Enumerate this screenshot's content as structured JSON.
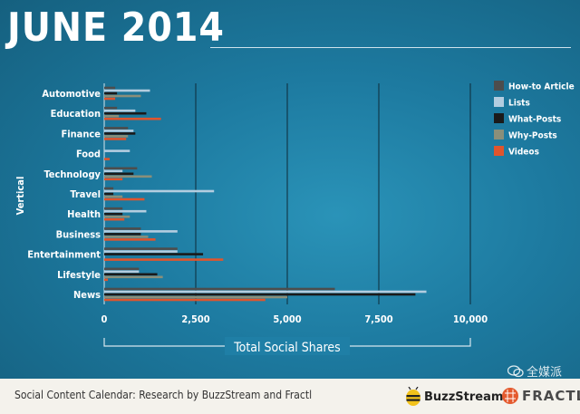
{
  "header": {
    "title": "JUNE 2014"
  },
  "chart_data": {
    "type": "bar",
    "orientation": "horizontal",
    "title": "",
    "xlabel": "Total Social Shares",
    "ylabel": "Vertical",
    "xlim": [
      0,
      10000
    ],
    "xticks": [
      0,
      2500,
      5000,
      7500,
      10000
    ],
    "xtick_labels": [
      "0",
      "2,500",
      "5,000",
      "7,500",
      "10,000"
    ],
    "grid": true,
    "legend_position": "right",
    "categories": [
      "Automotive",
      "Education",
      "Finance",
      "Food",
      "Technology",
      "Travel",
      "Health",
      "Business",
      "Entertainment",
      "Lifestyle",
      "News"
    ],
    "series": [
      {
        "name": "How-to Article",
        "color": "#4d4d4d",
        "values": [
          300,
          350,
          650,
          0,
          900,
          250,
          500,
          1000,
          2000,
          950,
          6300
        ]
      },
      {
        "name": "Lists",
        "color": "#b3cde0",
        "values": [
          1250,
          850,
          800,
          700,
          500,
          3000,
          1150,
          2000,
          2000,
          950,
          8800
        ]
      },
      {
        "name": "What-Posts",
        "color": "#1a1a1a",
        "values": [
          350,
          1150,
          850,
          0,
          800,
          250,
          500,
          1000,
          2700,
          1450,
          8500
        ]
      },
      {
        "name": "Why-Posts",
        "color": "#8a8f7a",
        "values": [
          1000,
          400,
          650,
          0,
          1300,
          500,
          700,
          1200,
          0,
          1600,
          5000
        ]
      },
      {
        "name": "Videos",
        "color": "#e0552d",
        "values": [
          300,
          1550,
          600,
          150,
          500,
          1100,
          550,
          1400,
          3250,
          100,
          4400
        ]
      }
    ]
  },
  "footer": {
    "credit": "Social Content Calendar: Research by BuzzStream and Fractl",
    "buzzstream": "BuzzStream",
    "fractl": "FRACTL"
  },
  "watermark": {
    "text": "全媒派"
  }
}
